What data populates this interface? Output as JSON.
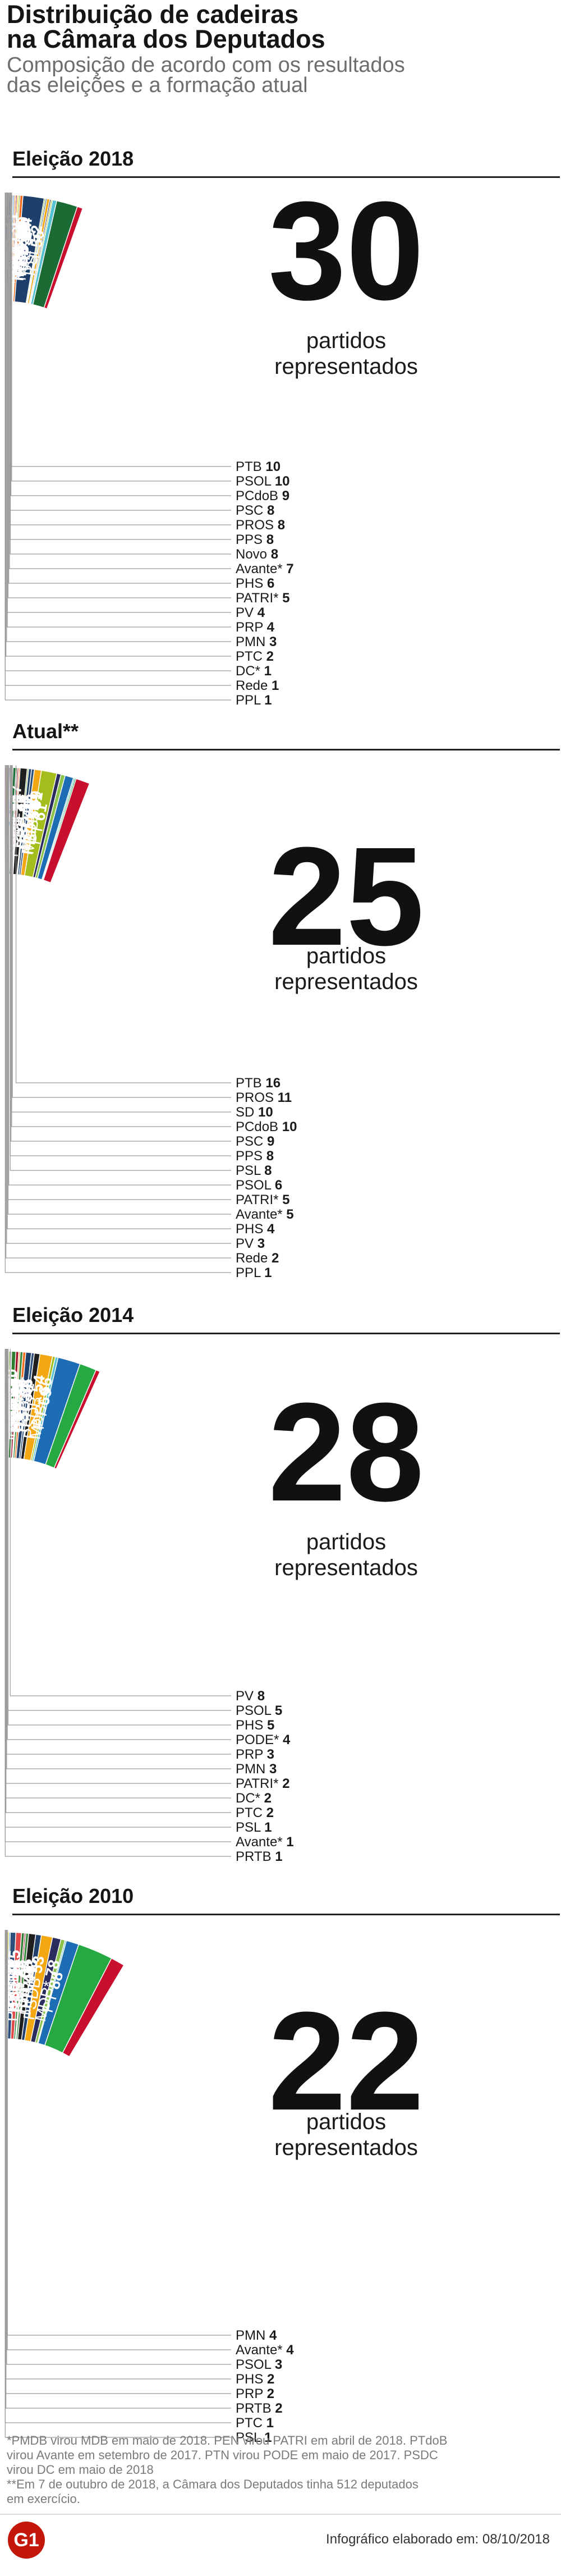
{
  "header": {
    "title_line1": "Distribuição de cadeiras",
    "title_line2": "na Câmara dos Deputados",
    "subtitle_line1": "Composição de acordo com os resultados",
    "subtitle_line2": "das eleições e a formação atual"
  },
  "caption_line1": "partidos",
  "caption_line2": "representados",
  "chart_data": [
    {
      "type": "pie",
      "title": "Eleição 2018",
      "total_parties": "30",
      "slices": [
        {
          "label": "PT",
          "value": 56,
          "color": "#c8102e",
          "inside": true
        },
        {
          "label": "PSL",
          "value": 52,
          "color": "#1b6b35",
          "inside": true
        },
        {
          "label": "PP",
          "value": 37,
          "color": "#56c1d1",
          "inside": true
        },
        {
          "label": "MDB*",
          "value": 34,
          "color": "#26a843",
          "inside": true
        },
        {
          "label": "PSD",
          "value": 34,
          "color": "#a5bd1c",
          "inside": true
        },
        {
          "label": "PR",
          "value": 33,
          "color": "#2a2c5e",
          "inside": true
        },
        {
          "label": "PSB",
          "value": 32,
          "color": "#f3a712",
          "inside": true
        },
        {
          "label": "PRB",
          "value": 30,
          "color": "#2d4f7c",
          "inside": true
        },
        {
          "label": "PSDB",
          "value": 29,
          "color": "#1d6db5",
          "inside": true
        },
        {
          "label": "DEM",
          "value": 29,
          "color": "#8bc34a",
          "inside": true
        },
        {
          "label": "PDT",
          "value": 28,
          "color": "#1f3f6b",
          "inside": true
        },
        {
          "label": "SD",
          "value": 13,
          "color": "#f26b1d",
          "inside": true
        },
        {
          "label": "PODE*",
          "value": 11,
          "color": "#7fa93a",
          "inside": true
        },
        {
          "label": "PTB",
          "value": 10,
          "color": "#1f1f1f",
          "inside": false
        },
        {
          "label": "PSOL",
          "value": 10,
          "color": "#f4d100",
          "inside": false
        },
        {
          "label": "PCdoB",
          "value": 9,
          "color": "#a1122a",
          "inside": false
        },
        {
          "label": "PSC",
          "value": 8,
          "color": "#3d8c40",
          "inside": false
        },
        {
          "label": "PROS",
          "value": 8,
          "color": "#f08a3c",
          "inside": false
        },
        {
          "label": "PPS",
          "value": 8,
          "color": "#e0484a",
          "inside": false
        },
        {
          "label": "Novo",
          "value": 8,
          "color": "#f47e20",
          "inside": false
        },
        {
          "label": "Avante*",
          "value": 7,
          "color": "#5b9bd5",
          "inside": false
        },
        {
          "label": "PHS",
          "value": 6,
          "color": "#9e9e9e",
          "inside": false
        },
        {
          "label": "PATRI*",
          "value": 5,
          "color": "#6d4c41",
          "inside": false
        },
        {
          "label": "PV",
          "value": 4,
          "color": "#2e7d32",
          "inside": false
        },
        {
          "label": "PRP",
          "value": 4,
          "color": "#283593",
          "inside": false
        },
        {
          "label": "PMN",
          "value": 3,
          "color": "#c62828",
          "inside": false
        },
        {
          "label": "PTC",
          "value": 2,
          "color": "#1565c0",
          "inside": false
        },
        {
          "label": "DC*",
          "value": 1,
          "color": "#00897b",
          "inside": false
        },
        {
          "label": "Rede",
          "value": 1,
          "color": "#ef6c00",
          "inside": false
        },
        {
          "label": "PPL",
          "value": 1,
          "color": "#8e24aa",
          "inside": false
        }
      ]
    },
    {
      "type": "pie",
      "title": "Atual**",
      "total_parties": "25",
      "slices": [
        {
          "label": "PT",
          "value": 61,
          "color": "#c8102e",
          "inside": true
        },
        {
          "label": "MDB*",
          "value": 51,
          "color": "#26a843",
          "inside": true
        },
        {
          "label": "PP",
          "value": 50,
          "color": "#56c1d1",
          "inside": true
        },
        {
          "label": "PSDB",
          "value": 49,
          "color": "#1d6db5",
          "inside": true
        },
        {
          "label": "DEM",
          "value": 43,
          "color": "#8bc34a",
          "inside": true
        },
        {
          "label": "PR",
          "value": 40,
          "color": "#2a2c5e",
          "inside": true
        },
        {
          "label": "PSD",
          "value": 37,
          "color": "#a5bd1c",
          "inside": true
        },
        {
          "label": "PSB",
          "value": 26,
          "color": "#f3a712",
          "inside": true
        },
        {
          "label": "PRB",
          "value": 21,
          "color": "#2d4f7c",
          "inside": true
        },
        {
          "label": "PDT",
          "value": 19,
          "color": "#1f3f6b",
          "inside": true
        },
        {
          "label": "PODE*",
          "value": 17,
          "color": "#7fa93a",
          "inside": true
        },
        {
          "label": "PTB",
          "value": 16,
          "color": "#1f1f1f",
          "inside": false
        },
        {
          "label": "PROS",
          "value": 11,
          "color": "#f08a3c",
          "inside": false
        },
        {
          "label": "SD",
          "value": 10,
          "color": "#f26b1d",
          "inside": false
        },
        {
          "label": "PCdoB",
          "value": 10,
          "color": "#a1122a",
          "inside": false
        },
        {
          "label": "PSC",
          "value": 9,
          "color": "#3d8c40",
          "inside": false
        },
        {
          "label": "PPS",
          "value": 8,
          "color": "#e0484a",
          "inside": false
        },
        {
          "label": "PSL",
          "value": 8,
          "color": "#1b6b35",
          "inside": false
        },
        {
          "label": "PSOL",
          "value": 6,
          "color": "#f4d100",
          "inside": false
        },
        {
          "label": "PATRI*",
          "value": 5,
          "color": "#6d4c41",
          "inside": false
        },
        {
          "label": "Avante*",
          "value": 5,
          "color": "#5b9bd5",
          "inside": false
        },
        {
          "label": "PHS",
          "value": 4,
          "color": "#9e9e9e",
          "inside": false
        },
        {
          "label": "PV",
          "value": 3,
          "color": "#2e7d32",
          "inside": false
        },
        {
          "label": "Rede",
          "value": 2,
          "color": "#ef6c00",
          "inside": false
        },
        {
          "label": "PPL",
          "value": 1,
          "color": "#8e24aa",
          "inside": false
        }
      ]
    },
    {
      "type": "pie",
      "title": "Eleição 2014",
      "total_parties": "28",
      "slices": [
        {
          "label": "PT",
          "value": 69,
          "color": "#c8102e",
          "inside": true
        },
        {
          "label": "MDB*",
          "value": 66,
          "color": "#26a843",
          "inside": true
        },
        {
          "label": "PSDB",
          "value": 54,
          "color": "#1d6db5",
          "inside": true
        },
        {
          "label": "PP",
          "value": 38,
          "color": "#56c1d1",
          "inside": true
        },
        {
          "label": "PSD",
          "value": 36,
          "color": "#a5bd1c",
          "inside": true
        },
        {
          "label": "PR",
          "value": 34,
          "color": "#2a2c5e",
          "inside": true
        },
        {
          "label": "PSB",
          "value": 34,
          "color": "#f3a712",
          "inside": true
        },
        {
          "label": "PTB",
          "value": 25,
          "color": "#1f1f1f",
          "inside": true
        },
        {
          "label": "DEM",
          "value": 21,
          "color": "#8bc34a",
          "inside": true
        },
        {
          "label": "PRB",
          "value": 21,
          "color": "#2d4f7c",
          "inside": true
        },
        {
          "label": "PDT",
          "value": 19,
          "color": "#1f3f6b",
          "inside": true
        },
        {
          "label": "SD",
          "value": 15,
          "color": "#f26b1d",
          "inside": true
        },
        {
          "label": "PSC",
          "value": 13,
          "color": "#3d8c40",
          "inside": true
        },
        {
          "label": "PROS",
          "value": 11,
          "color": "#f08a3c",
          "inside": true
        },
        {
          "label": "PPS",
          "value": 10,
          "color": "#e0484a",
          "inside": true
        },
        {
          "label": "PCdoB",
          "value": 10,
          "color": "#a1122a",
          "inside": true
        },
        {
          "label": "PV",
          "value": 8,
          "color": "#2e7d32",
          "inside": false
        },
        {
          "label": "PSOL",
          "value": 5,
          "color": "#f4d100",
          "inside": false
        },
        {
          "label": "PHS",
          "value": 5,
          "color": "#9e9e9e",
          "inside": false
        },
        {
          "label": "PODE*",
          "value": 4,
          "color": "#7fa93a",
          "inside": false
        },
        {
          "label": "PRP",
          "value": 3,
          "color": "#283593",
          "inside": false
        },
        {
          "label": "PMN",
          "value": 3,
          "color": "#c62828",
          "inside": false
        },
        {
          "label": "PATRI*",
          "value": 2,
          "color": "#6d4c41",
          "inside": false
        },
        {
          "label": "DC*",
          "value": 2,
          "color": "#00897b",
          "inside": false
        },
        {
          "label": "PTC",
          "value": 2,
          "color": "#1565c0",
          "inside": false
        },
        {
          "label": "PSL",
          "value": 1,
          "color": "#1b6b35",
          "inside": false
        },
        {
          "label": "Avante*",
          "value": 1,
          "color": "#5b9bd5",
          "inside": false
        },
        {
          "label": "PRTB",
          "value": 1,
          "color": "#455a64",
          "inside": false
        }
      ]
    },
    {
      "type": "pie",
      "title": "Eleição 2010",
      "total_parties": "22",
      "slices": [
        {
          "label": "PT",
          "value": 88,
          "color": "#c8102e",
          "inside": true
        },
        {
          "label": "MDB*",
          "value": 78,
          "color": "#26a843",
          "inside": true
        },
        {
          "label": "PSDB",
          "value": 53,
          "color": "#1d6db5",
          "inside": true
        },
        {
          "label": "PP",
          "value": 44,
          "color": "#56c1d1",
          "inside": true
        },
        {
          "label": "DEM",
          "value": 43,
          "color": "#8bc34a",
          "inside": true
        },
        {
          "label": "PR",
          "value": 40,
          "color": "#2a2c5e",
          "inside": true
        },
        {
          "label": "PSB",
          "value": 34,
          "color": "#f3a712",
          "inside": true
        },
        {
          "label": "PDT",
          "value": 26,
          "color": "#1f3f6b",
          "inside": true
        },
        {
          "label": "PTB",
          "value": 22,
          "color": "#1f1f1f",
          "inside": true
        },
        {
          "label": "PSC",
          "value": 17,
          "color": "#3d8c40",
          "inside": true
        },
        {
          "label": "PCdoB",
          "value": 15,
          "color": "#a1122a",
          "inside": true
        },
        {
          "label": "PV",
          "value": 14,
          "color": "#2e7d32",
          "inside": true
        },
        {
          "label": "PPS",
          "value": 12,
          "color": "#e0484a",
          "inside": true
        },
        {
          "label": "PRB",
          "value": 8,
          "color": "#2d4f7c",
          "inside": true
        },
        {
          "label": "PMN",
          "value": 4,
          "color": "#c62828",
          "inside": false
        },
        {
          "label": "Avante*",
          "value": 4,
          "color": "#5b9bd5",
          "inside": false
        },
        {
          "label": "PSOL",
          "value": 3,
          "color": "#f4d100",
          "inside": false
        },
        {
          "label": "PHS",
          "value": 2,
          "color": "#9e9e9e",
          "inside": false
        },
        {
          "label": "PRP",
          "value": 2,
          "color": "#283593",
          "inside": false
        },
        {
          "label": "PRTB",
          "value": 2,
          "color": "#455a64",
          "inside": false
        },
        {
          "label": "PTC",
          "value": 1,
          "color": "#1565c0",
          "inside": false
        },
        {
          "label": "PSL",
          "value": 1,
          "color": "#1b6b35",
          "inside": false
        }
      ]
    }
  ],
  "footnotes": {
    "line1": "*PMDB virou MDB em maio de 2018. PEN virou PATRI em abril de 2018. PTdoB",
    "line2": "virou Avante em setembro de 2017. PTN virou PODE em maio de 2017. PSDC",
    "line3": "virou DC em maio de 2018",
    "line4": "**Em 7 de outubro de 2018, a Câmara dos Deputados tinha 512 deputados",
    "line5": "em exercício."
  },
  "footer": {
    "logo": "G1",
    "credit": "Infográfico elaborado em: 08/10/2018"
  }
}
